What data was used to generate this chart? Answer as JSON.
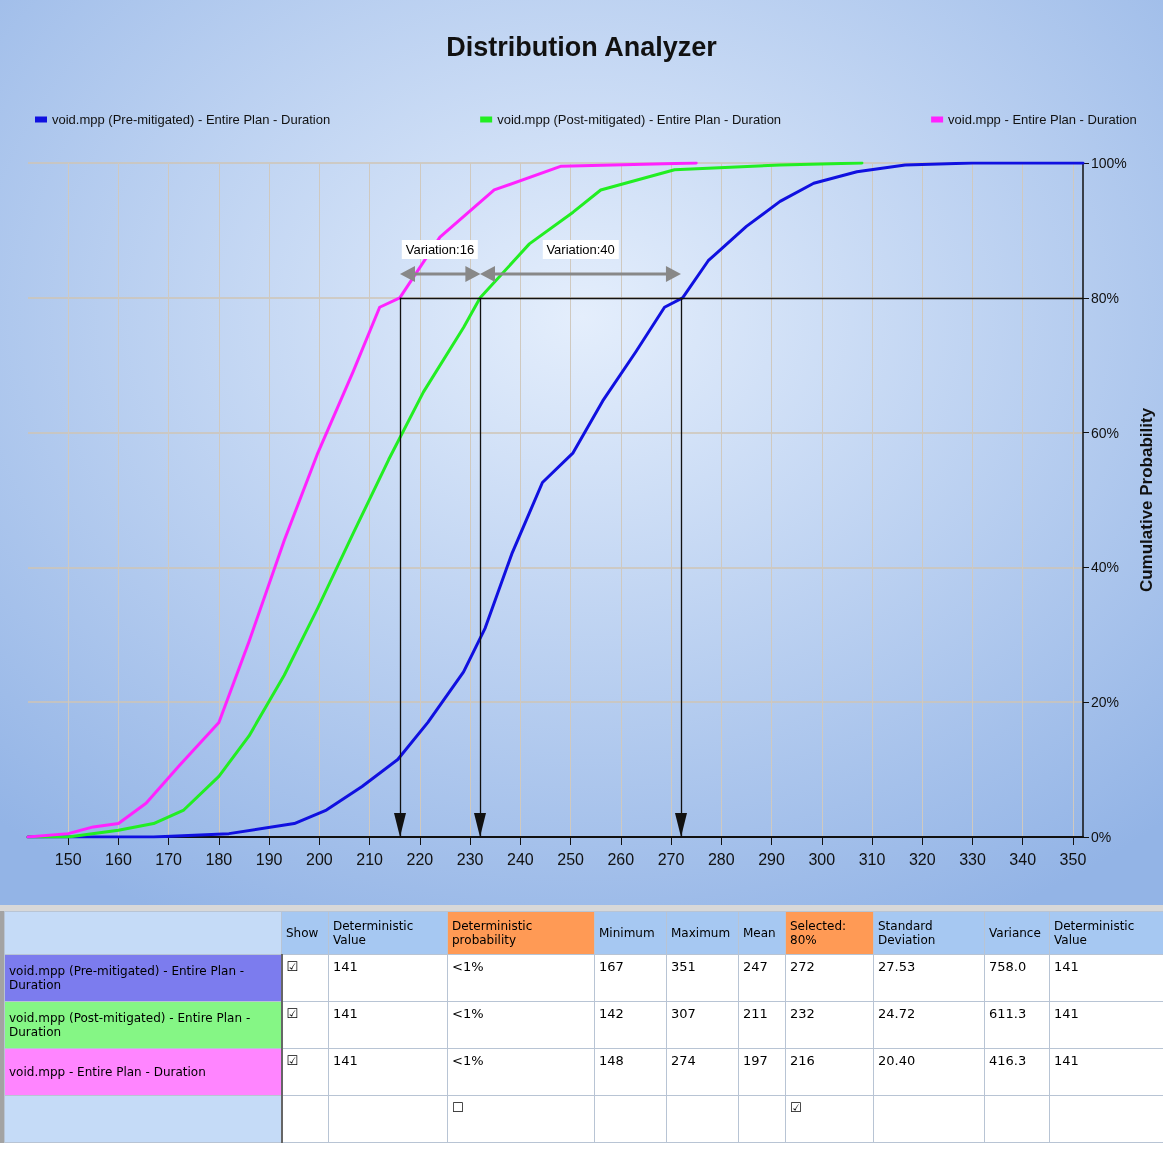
{
  "chart_data": [
    {
      "type": "line",
      "title": "Distribution Analyzer",
      "ylabel": "Cumulative Probability",
      "xlim": [
        142,
        352
      ],
      "xticks": [
        150,
        160,
        170,
        180,
        190,
        200,
        210,
        220,
        230,
        240,
        250,
        260,
        270,
        280,
        290,
        300,
        310,
        320,
        330,
        340,
        350
      ],
      "ylim": [
        0,
        100
      ],
      "yticks": [
        {
          "value": 0,
          "label": "0%"
        },
        {
          "value": 20,
          "label": "20%"
        },
        {
          "value": 40,
          "label": "40%"
        },
        {
          "value": 60,
          "label": "60%"
        },
        {
          "value": 80,
          "label": "80%"
        },
        {
          "value": 100,
          "label": "100%"
        }
      ],
      "grid": true,
      "legend": "top",
      "marker": "none",
      "line_style": "solid",
      "series": [
        {
          "name": "void.mpp (Pre-mitigated) - Entire Plan - Duration",
          "color": "#1010e0",
          "x": [
            142,
            167,
            182,
            195,
            201.4,
            208.5,
            215.6,
            221.6,
            228.7,
            233,
            238.3,
            244.4,
            250.5,
            256.4,
            263,
            268.7,
            272.3,
            277.4,
            285,
            291.7,
            298.4,
            307,
            316.6,
            330,
            352
          ],
          "values": [
            0,
            0,
            0.5,
            2,
            4,
            7.5,
            11.5,
            17,
            24.5,
            31,
            42,
            52.6,
            57,
            64.7,
            72,
            78.6,
            80,
            85.5,
            90.6,
            94.3,
            97,
            98.7,
            99.7,
            100,
            100
          ]
        },
        {
          "name": "void.mpp (Post-mitigated) - Entire Plan - Duration",
          "color": "#22ee22",
          "x": [
            142,
            150,
            160,
            167,
            173,
            180,
            186,
            193,
            199.7,
            206.7,
            213.8,
            220.7,
            228.7,
            232,
            241.8,
            250.5,
            256,
            270.7,
            291.7,
            308
          ],
          "values": [
            0,
            0,
            1,
            2,
            4,
            9,
            15,
            24,
            34,
            45,
            56,
            66,
            75.6,
            80,
            88,
            92.7,
            96,
            99,
            99.7,
            100
          ]
        },
        {
          "name": "void.mpp - Entire Plan - Duration",
          "color": "#ff22ff",
          "x": [
            142,
            150,
            155,
            160,
            165.5,
            172,
            180,
            186,
            193,
            199.7,
            206.7,
            212,
            216,
            224,
            234.8,
            248,
            275
          ],
          "values": [
            0,
            0.5,
            1.5,
            2,
            5,
            10.5,
            17,
            29,
            44,
            57,
            69,
            78.6,
            80,
            89,
            96,
            99.5,
            100
          ]
        }
      ],
      "ref_lines": [
        {
          "axis": "y",
          "value": 80
        },
        {
          "axis": "x",
          "value": 216
        },
        {
          "axis": "x",
          "value": 232
        },
        {
          "axis": "x",
          "value": 272
        }
      ],
      "annotations": [
        "Variation:16",
        "Variation:40"
      ]
    },
    {
      "type": "other",
      "categories": [
        null,
        "Show",
        "Deterministic Value",
        "Deterministic probability",
        "Minimum",
        "Maximum",
        "Mean",
        "Selected: 80%",
        "Standard Deviation",
        "Variance",
        "Deterministic Value"
      ],
      "colors": [
        "#c5dbf7",
        "#a6c8f2",
        "#a6c8f2",
        "#ff9a55",
        "#a6c8f2",
        "#a6c8f2",
        "#a6c8f2",
        "#ff9a55",
        "#a6c8f2",
        "#a6c8f2",
        "#a6c8f2"
      ],
      "y_categories": [
        "void.mpp (Pre-mitigated) - Entire Plan - Duration",
        "void.mpp (Post-mitigated) - Entire Plan - Duration",
        "void.mpp - Entire Plan - Duration",
        null
      ],
      "cell_labels": [
        [
          "☑",
          "141",
          "<1%",
          "167",
          "351",
          "247",
          "272",
          "27.53",
          "758.0",
          "141"
        ],
        [
          "☑",
          "141",
          "<1%",
          "142",
          "307",
          "211",
          "232",
          "24.72",
          "611.3",
          "141"
        ],
        [
          "☑",
          "141",
          "<1%",
          "148",
          "274",
          "197",
          "216",
          "20.40",
          "416.3",
          "141"
        ],
        [
          null,
          null,
          "☐",
          null,
          null,
          null,
          "☑",
          null,
          null,
          null
        ]
      ]
    }
  ]
}
